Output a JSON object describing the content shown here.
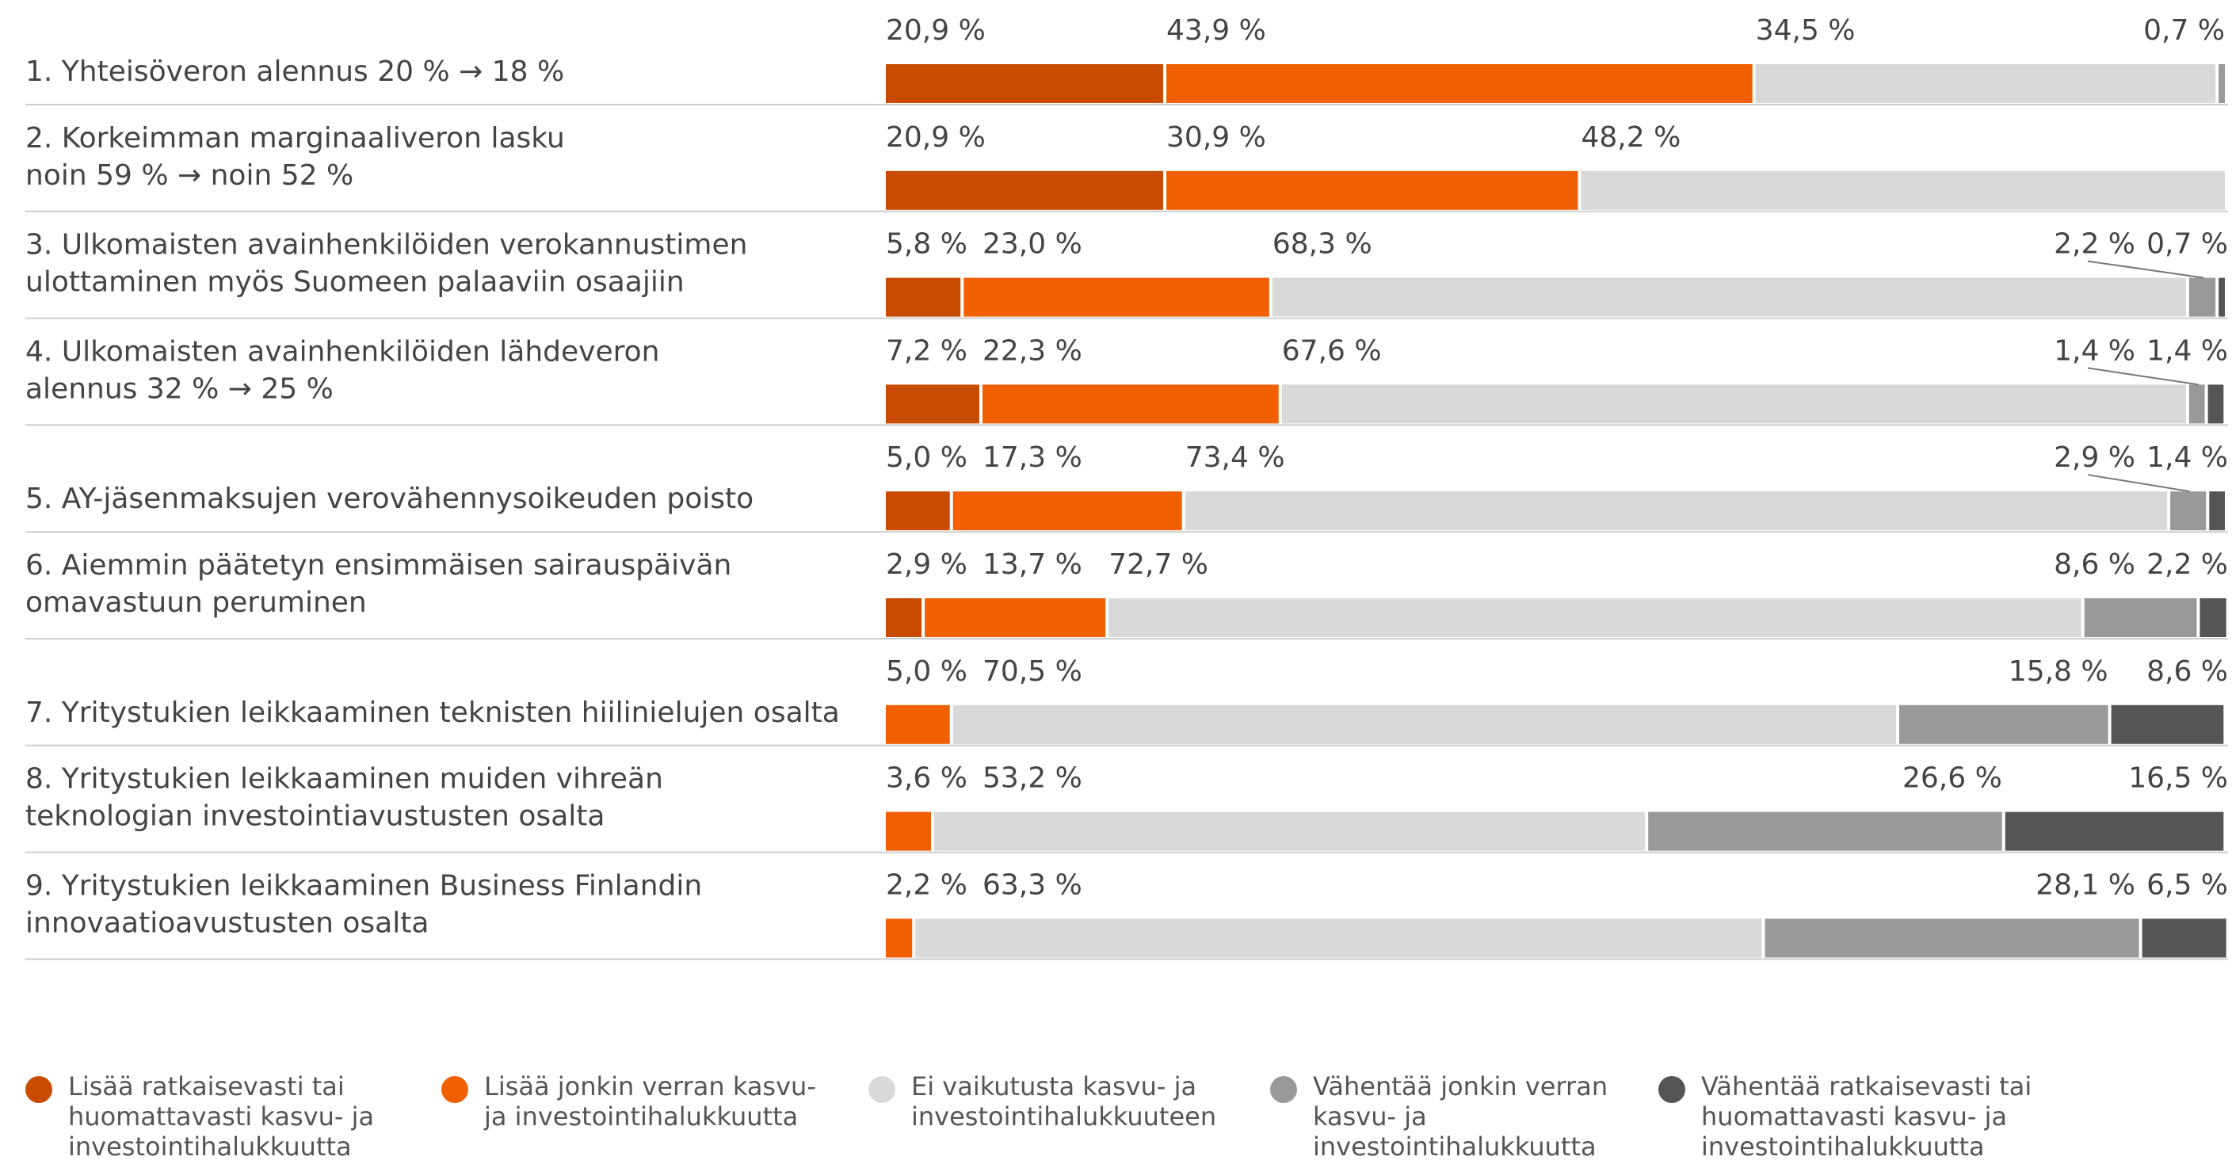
{
  "chart_data": {
    "type": "stacked-bar-horizontal",
    "categories": [
      [
        "1. Yhteisöveron alennus 20 % → 18 %"
      ],
      [
        "2. Korkeimman marginaaliveron lasku",
        "noin 59 % → noin 52 %"
      ],
      [
        "3. Ulkomaisten avainhenkilöiden verokannustimen",
        "ulottaminen myös Suomeen palaaviin osaajiin"
      ],
      [
        "4. Ulkomaisten avainhenkilöiden lähdeveron",
        "alennus 32 % → 25 %"
      ],
      [
        "5. AY-jäsenmaksujen verovähennysoikeuden poisto"
      ],
      [
        "6. Aiemmin päätetyn ensimmäisen sairauspäivän",
        "omavastuun peruminen"
      ],
      [
        "7. Yritystukien leikkaaminen teknisten hiilinielujen osalta"
      ],
      [
        "8. Yritystukien leikkaaminen muiden vihreän",
        "teknologian investointiavustusten osalta"
      ],
      [
        "9. Yritystukien leikkaaminen Business Finlandin",
        "innovaatioavustusten osalta"
      ]
    ],
    "xlim": [
      0,
      100
    ],
    "series": [
      {
        "name": "Lisää ratkaisevasti tai huomattavasti kasvu- ja investointihalukkuutta",
        "color": "#c84b00",
        "values": [
          20.9,
          20.9,
          5.8,
          7.2,
          5.0,
          2.9,
          null,
          null,
          null
        ],
        "value_labels": [
          "20,9 %",
          "20,9 %",
          "5,8 %",
          "7,2 %",
          "5,0 %",
          "2,9 %",
          null,
          null,
          null
        ]
      },
      {
        "name": "Lisää jonkin verran kasvu- ja investointihalukkuutta",
        "color": "#f06000",
        "values": [
          43.9,
          30.9,
          23.0,
          22.3,
          17.3,
          13.7,
          5.0,
          3.6,
          2.2
        ],
        "value_labels": [
          "43,9 %",
          "30,9 %",
          "23,0 %",
          "22,3 %",
          "17,3 %",
          "13,7 %",
          "5,0 %",
          "3,6 %",
          "2,2 %"
        ]
      },
      {
        "name": "Ei vaikutusta kasvu- ja investointihalukkuuteen",
        "color": "#d9d9d9",
        "values": [
          34.5,
          48.2,
          68.3,
          67.6,
          73.4,
          72.7,
          70.5,
          53.2,
          63.3
        ],
        "value_labels": [
          "34,5 %",
          "48,2 %",
          "68,3 %",
          "67,6 %",
          "73,4 %",
          "72,7 %",
          "70,5 %",
          "53,2 %",
          "63,3 %"
        ]
      },
      {
        "name": "Vähentää jonkin verran kasvu- ja investointihalukkuutta",
        "color": "#999999",
        "values": [
          0.7,
          null,
          2.2,
          1.4,
          2.9,
          8.6,
          15.8,
          26.6,
          28.1
        ],
        "value_labels": [
          "0,7 %",
          null,
          "2,2 %",
          "1,4 %",
          "2,9 %",
          "8,6 %",
          "15,8 %",
          "26,6 %",
          "28,1 %"
        ]
      },
      {
        "name": "Vähentää ratkaisevasti tai huomattavasti kasvu- ja investointihalukkuutta",
        "color": "#555555",
        "values": [
          null,
          null,
          0.7,
          1.4,
          1.4,
          2.2,
          8.6,
          16.5,
          6.5
        ],
        "value_labels": [
          null,
          null,
          "0,7 %",
          "1,4 %",
          "1,4 %",
          "2,2 %",
          "8,6 %",
          "16,5 %",
          "6,5 %"
        ]
      }
    ]
  }
}
